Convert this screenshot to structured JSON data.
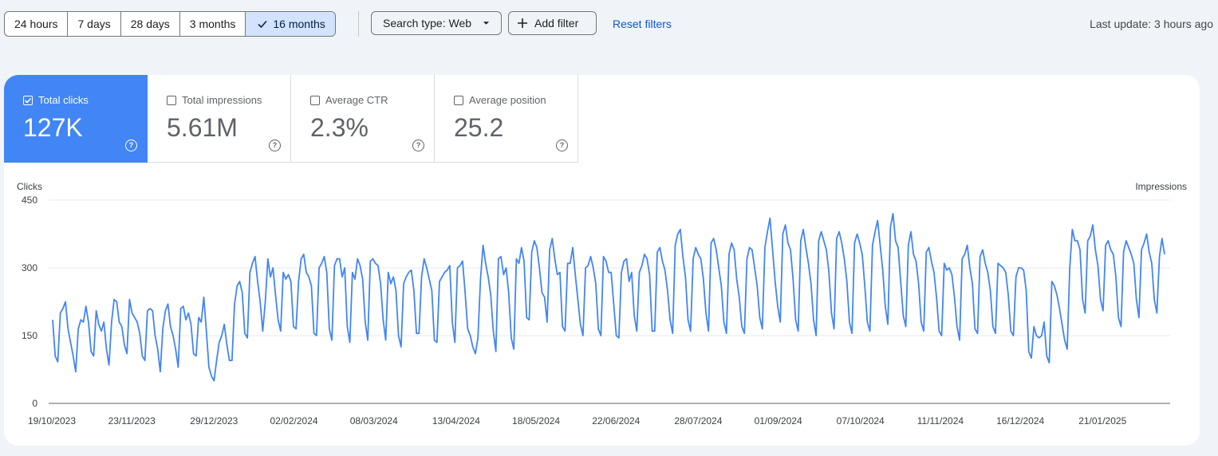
{
  "toolbar": {
    "ranges": [
      {
        "label": "24 hours",
        "selected": false
      },
      {
        "label": "7 days",
        "selected": false
      },
      {
        "label": "28 days",
        "selected": false
      },
      {
        "label": "3 months",
        "selected": false
      },
      {
        "label": "16 months",
        "selected": true
      }
    ],
    "search_type_label": "Search type: Web",
    "add_filter_label": "Add filter",
    "reset_filters_label": "Reset filters",
    "last_update": "Last update: 3 hours ago"
  },
  "metrics": [
    {
      "label": "Total clicks",
      "value": "127K",
      "active": true
    },
    {
      "label": "Total impressions",
      "value": "5.61M",
      "active": false
    },
    {
      "label": "Average CTR",
      "value": "2.3%",
      "active": false
    },
    {
      "label": "Average position",
      "value": "25.2",
      "active": false
    }
  ],
  "colors": {
    "accent": "#4285f4",
    "line": "#4285f4",
    "link": "#0b57d0"
  },
  "chart_data": {
    "type": "line",
    "ylabel": "Clicks",
    "ylabel_right": "Impressions",
    "ylim": [
      0,
      450
    ],
    "yticks": [
      0,
      150,
      300,
      450
    ],
    "x_start": "2023-10-19",
    "x_end": "2025-02-21",
    "xtick_labels": [
      "19/10/2023",
      "23/11/2023",
      "29/12/2023",
      "02/02/2024",
      "08/03/2024",
      "13/04/2024",
      "18/05/2024",
      "22/06/2024",
      "28/07/2024",
      "01/09/2024",
      "07/10/2024",
      "11/11/2024",
      "16/12/2024",
      "21/01/2025"
    ],
    "series": [
      {
        "name": "Clicks",
        "weekly_pattern_note": "",
        "values": [
          185,
          105,
          92,
          200,
          210,
          225,
          165,
          135,
          105,
          70,
          165,
          185,
          180,
          215,
          180,
          115,
          105,
          205,
          175,
          160,
          180,
          120,
          85,
          180,
          230,
          225,
          180,
          170,
          130,
          110,
          230,
          200,
          190,
          180,
          155,
          105,
          95,
          205,
          210,
          205,
          150,
          120,
          70,
          165,
          205,
          220,
          170,
          150,
          120,
          80,
          210,
          215,
          185,
          200,
          175,
          110,
          105,
          190,
          180,
          235,
          160,
          80,
          60,
          50,
          95,
          135,
          150,
          175,
          130,
          95,
          95,
          220,
          260,
          270,
          245,
          155,
          145,
          290,
          310,
          325,
          270,
          225,
          160,
          225,
          320,
          280,
          300,
          240,
          185,
          160,
          290,
          275,
          285,
          270,
          170,
          165,
          270,
          320,
          330,
          290,
          280,
          260,
          155,
          150,
          300,
          310,
          325,
          290,
          165,
          140,
          305,
          320,
          320,
          280,
          300,
          170,
          135,
          290,
          275,
          320,
          305,
          275,
          180,
          140,
          315,
          320,
          310,
          305,
          265,
          185,
          140,
          290,
          265,
          280,
          250,
          150,
          125,
          265,
          280,
          290,
          295,
          250,
          155,
          155,
          280,
          320,
          300,
          275,
          250,
          140,
          135,
          270,
          280,
          290,
          295,
          305,
          180,
          135,
          300,
          305,
          315,
          245,
          165,
          150,
          125,
          110,
          145,
          275,
          350,
          310,
          280,
          240,
          160,
          115,
          320,
          325,
          285,
          300,
          245,
          145,
          120,
          320,
          310,
          345,
          315,
          190,
          185,
          335,
          360,
          345,
          300,
          245,
          235,
          180,
          340,
          365,
          320,
          285,
          290,
          170,
          160,
          310,
          310,
          345,
          285,
          230,
          175,
          150,
          300,
          305,
          325,
          300,
          265,
          165,
          150,
          325,
          315,
          290,
          290,
          220,
          150,
          145,
          290,
          315,
          320,
          270,
          290,
          195,
          160,
          290,
          305,
          330,
          320,
          285,
          160,
          160,
          335,
          345,
          315,
          295,
          250,
          185,
          155,
          350,
          375,
          385,
          325,
          280,
          185,
          160,
          320,
          345,
          330,
          320,
          275,
          200,
          160,
          355,
          365,
          340,
          300,
          260,
          180,
          155,
          330,
          355,
          340,
          275,
          235,
          170,
          155,
          320,
          345,
          340,
          300,
          260,
          190,
          165,
          345,
          380,
          410,
          340,
          270,
          215,
          180,
          375,
          395,
          355,
          340,
          275,
          185,
          160,
          360,
          385,
          345,
          310,
          265,
          185,
          150,
          360,
          380,
          360,
          340,
          290,
          200,
          165,
          365,
          380,
          355,
          320,
          270,
          180,
          155,
          355,
          375,
          355,
          330,
          260,
          180,
          160,
          350,
          380,
          405,
          350,
          295,
          215,
          175,
          390,
          420,
          360,
          345,
          270,
          195,
          170,
          350,
          380,
          330,
          315,
          265,
          180,
          160,
          335,
          345,
          315,
          290,
          235,
          160,
          150,
          310,
          295,
          300,
          285,
          235,
          170,
          140,
          320,
          330,
          350,
          300,
          265,
          165,
          155,
          325,
          340,
          310,
          290,
          250,
          170,
          155,
          310,
          305,
          300,
          290,
          240,
          160,
          150,
          280,
          300,
          300,
          295,
          250,
          115,
          100,
          170,
          150,
          145,
          150,
          180,
          105,
          90,
          270,
          260,
          240,
          210,
          175,
          140,
          120,
          300,
          385,
          360,
          360,
          340,
          230,
          200,
          360,
          370,
          395,
          340,
          305,
          230,
          205,
          350,
          360,
          340,
          330,
          280,
          190,
          170,
          335,
          360,
          345,
          330,
          310,
          230,
          190,
          340,
          355,
          375,
          335,
          310,
          230,
          200,
          325,
          365,
          330
        ]
      }
    ]
  }
}
